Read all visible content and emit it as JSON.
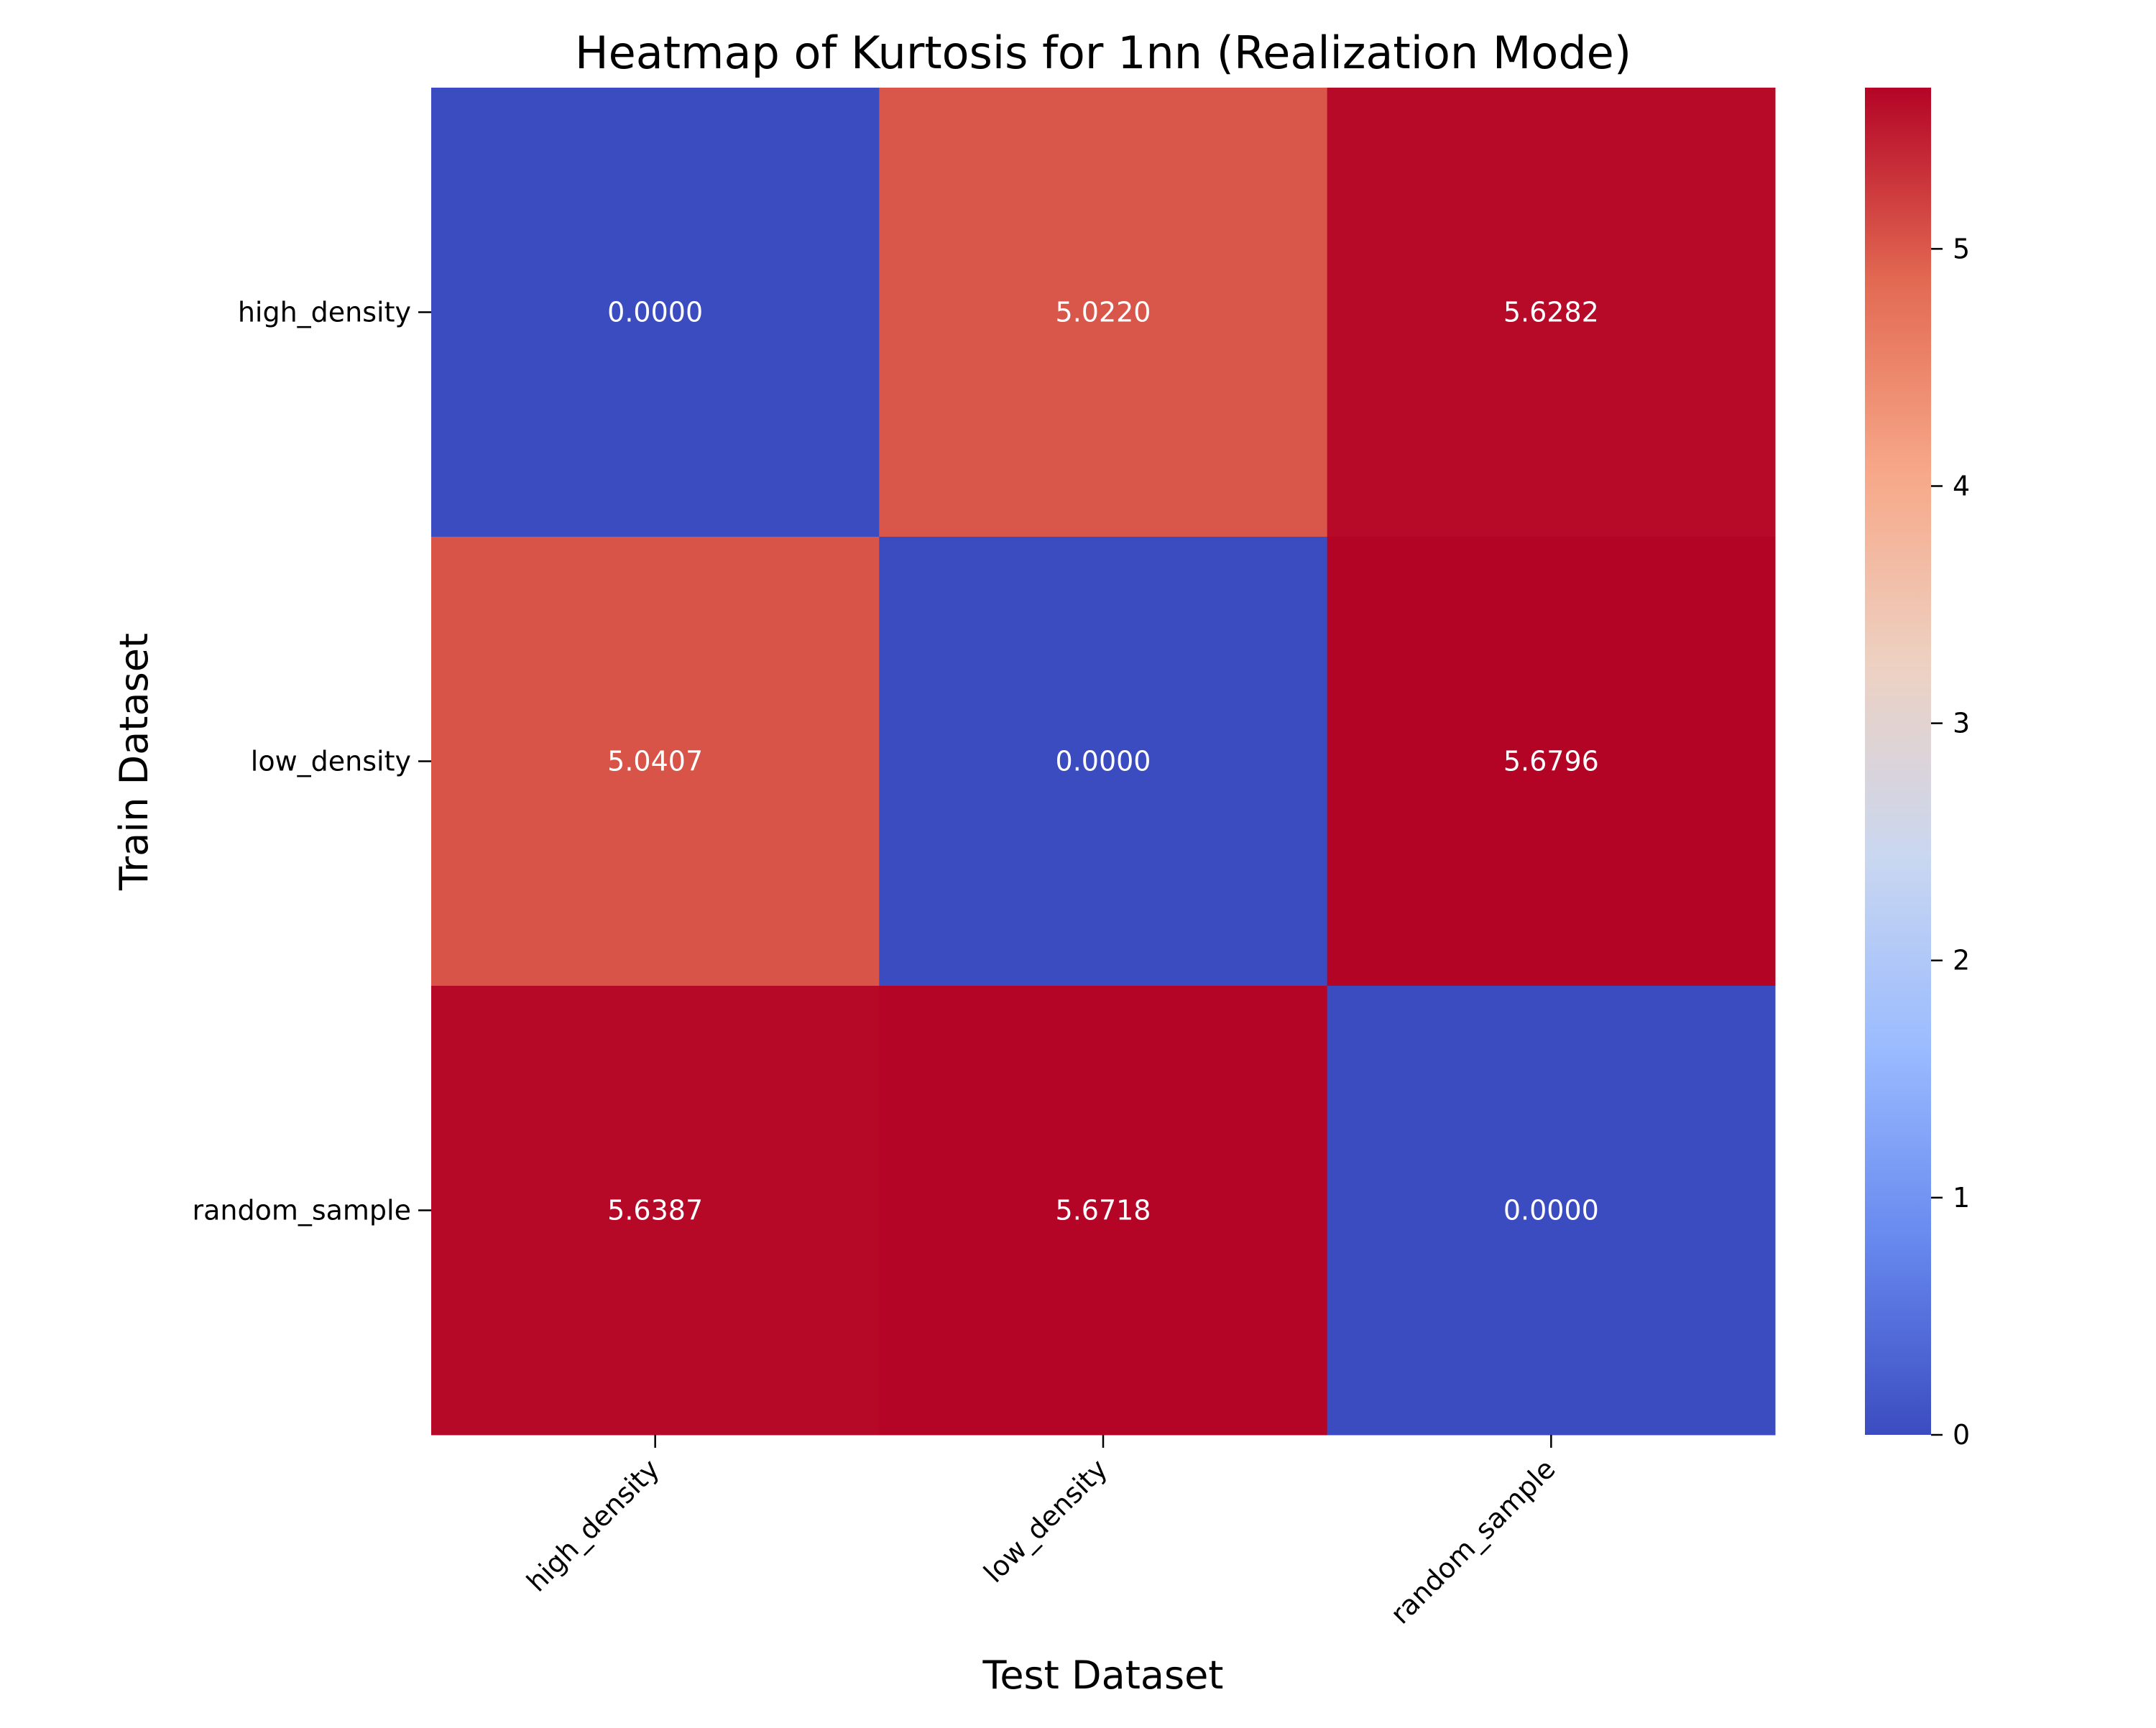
{
  "chart_data": {
    "type": "heatmap",
    "title": "Heatmap of Kurtosis for 1nn (Realization Mode)",
    "xlabel": "Test Dataset",
    "ylabel": "Train Dataset",
    "x_categories": [
      "high_density",
      "low_density",
      "random_sample"
    ],
    "y_categories": [
      "high_density",
      "low_density",
      "random_sample"
    ],
    "values": [
      [
        0.0,
        5.022,
        5.6282
      ],
      [
        5.0407,
        0.0,
        5.6796
      ],
      [
        5.6387,
        5.6718,
        0.0
      ]
    ],
    "cell_labels": [
      [
        "0.0000",
        "5.0220",
        "5.6282"
      ],
      [
        "5.0407",
        "0.0000",
        "5.6796"
      ],
      [
        "5.6387",
        "5.6718",
        "0.0000"
      ]
    ],
    "colormap": "coolwarm",
    "colormap_stops": [
      "#3b4cc0",
      "#6788ee",
      "#9abbff",
      "#c9d7f0",
      "#edd1c2",
      "#f7a889",
      "#e26952",
      "#b40426"
    ],
    "vmin": 0,
    "vmax": 5.6796,
    "colorbar": {
      "ticks": [
        0,
        1,
        2,
        3,
        4,
        5
      ],
      "tick_labels": [
        "0",
        "1",
        "2",
        "3",
        "4",
        "5"
      ]
    },
    "grid": false,
    "legend": "colorbar-right"
  }
}
